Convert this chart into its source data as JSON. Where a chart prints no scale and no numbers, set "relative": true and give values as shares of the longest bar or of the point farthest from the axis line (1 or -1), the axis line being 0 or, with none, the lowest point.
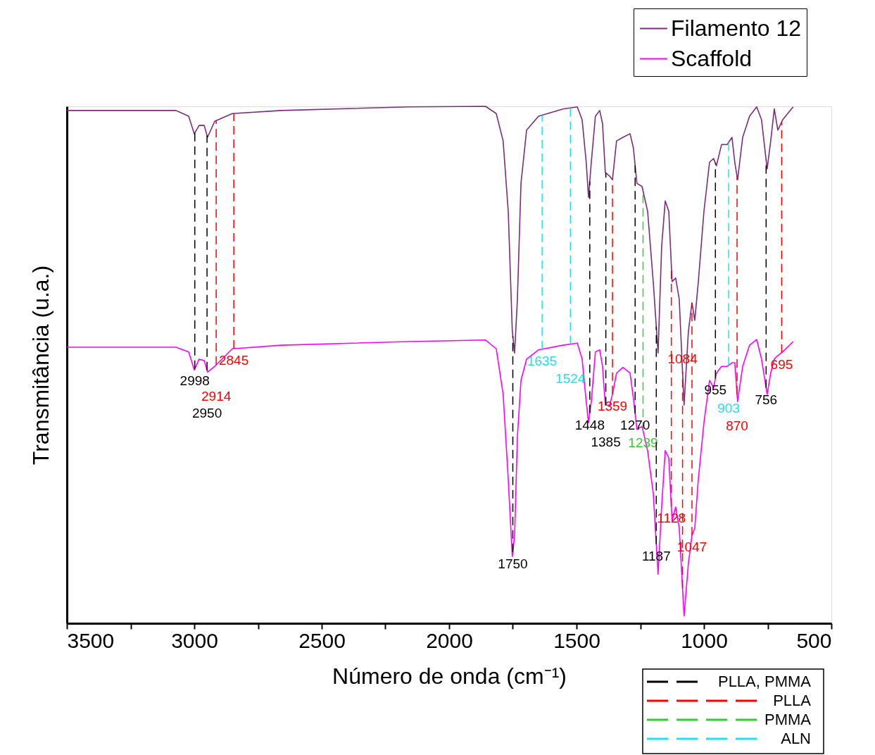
{
  "chart_data": {
    "type": "line",
    "relative": true,
    "xlabel": "Número de onda (cm⁻¹)",
    "ylabel": "Transmitância (u.a.)",
    "xlim": [
      3500,
      500
    ],
    "xticks": [
      3500,
      {
        "value": 3250,
        "label": null
      },
      3000,
      {
        "value": 2750,
        "label": null
      },
      2500,
      {
        "value": 2250,
        "label": null
      },
      2000,
      {
        "value": 1750,
        "label": null
      },
      1500,
      {
        "value": 1250,
        "label": null
      },
      1000,
      {
        "value": 750,
        "label": null
      },
      500
    ],
    "x": [
      3500,
      3072,
      3022,
      3000,
      2981,
      2961,
      2948,
      2920,
      2851,
      2658,
      2160,
      1857,
      1815,
      1788,
      1768,
      1752,
      1743,
      1732,
      1718,
      1696,
      1649,
      1553,
      1497,
      1478,
      1462,
      1453,
      1442,
      1426,
      1409,
      1398,
      1387,
      1370,
      1359,
      1343,
      1318,
      1290,
      1277,
      1263,
      1243,
      1221,
      1199,
      1180,
      1166,
      1152,
      1138,
      1125,
      1111,
      1097,
      1078,
      1061,
      1047,
      1036,
      1022,
      1000,
      978,
      962,
      951,
      931,
      909,
      890,
      879,
      868,
      848,
      821,
      793,
      774,
      752,
      738,
      724,
      710,
      691,
      650
    ],
    "series": [
      {
        "name": "Filamento 12",
        "color": "#7b2d7b",
        "values": [
          0.992,
          0.992,
          0.981,
          0.947,
          0.963,
          0.963,
          0.94,
          0.971,
          0.986,
          0.992,
          0.999,
          1,
          0.986,
          0.933,
          0.797,
          0.565,
          0.523,
          0.627,
          0.851,
          0.954,
          0.981,
          0.995,
          0.999,
          0.974,
          0.892,
          0.824,
          0.892,
          0.981,
          0.992,
          0.967,
          0.872,
          0.865,
          0.858,
          0.933,
          0.94,
          0.947,
          0.92,
          0.851,
          0.845,
          0.797,
          0.661,
          0.523,
          0.729,
          0.817,
          0.797,
          0.661,
          0.668,
          0.627,
          0.422,
          0.565,
          0.62,
          0.586,
          0.661,
          0.797,
          0.892,
          0.899,
          0.885,
          0.926,
          0.926,
          0.94,
          0.892,
          0.858,
          0.94,
          0.981,
          0.999,
          0.974,
          0.879,
          0.933,
          0.995,
          0.954,
          0.974,
          0.999
        ]
      },
      {
        "name": "Scaffold",
        "color": "#ff00ff",
        "values": [
          0.534,
          0.534,
          0.525,
          0.49,
          0.511,
          0.508,
          0.486,
          0.497,
          0.531,
          0.538,
          0.545,
          0.548,
          0.531,
          0.443,
          0.279,
          0.129,
          0.17,
          0.361,
          0.47,
          0.511,
          0.529,
          0.538,
          0.542,
          0.511,
          0.429,
          0.388,
          0.429,
          0.525,
          0.529,
          0.497,
          0.422,
          0.422,
          0.443,
          0.484,
          0.495,
          0.484,
          0.436,
          0.375,
          0.381,
          0.334,
          0.252,
          0.095,
          0.225,
          0.334,
          0.32,
          0.198,
          0.225,
          0.184,
          0.014,
          0.116,
          0.17,
          0.184,
          0.279,
          0.388,
          0.47,
          0.456,
          0.484,
          0.497,
          0.497,
          0.504,
          0.504,
          0.429,
          0.497,
          0.538,
          0.549,
          0.511,
          0.443,
          0.484,
          0.511,
          0.518,
          0.525,
          0.545
        ]
      }
    ],
    "legend": "top right",
    "grid": false,
    "marker": "none",
    "line_style": "solid",
    "ref_lines": [
      {
        "axis": "x",
        "value": 2998,
        "label": "2998",
        "color": "#000000",
        "line_style": "dashed"
      },
      {
        "axis": "x",
        "value": 2914,
        "label": "2914",
        "color": "#ff0000",
        "line_style": "dashed"
      },
      {
        "axis": "x",
        "value": 1239,
        "label": "1239",
        "color": "#33cc33",
        "line_style": "dashed"
      },
      {
        "axis": "x",
        "value": 1635,
        "label": "1635",
        "color": "#22e0f0",
        "line_style": "dashed"
      },
      {
        "axis": "x",
        "value": 2950,
        "label": "2950",
        "color": "#000000",
        "line_style": "dashed"
      },
      {
        "axis": "x",
        "value": 2845,
        "label": "2845",
        "color": "#ff0000",
        "line_style": "dashed"
      },
      {
        "axis": "x",
        "value": 1524,
        "label": "1524",
        "color": "#22e0f0",
        "line_style": "dashed"
      },
      {
        "axis": "x",
        "value": 1750,
        "label": "1750",
        "color": "#000000",
        "line_style": "dashed"
      },
      {
        "axis": "x",
        "value": 1448,
        "label": "1448",
        "color": "#000000",
        "line_style": "dashed"
      },
      {
        "axis": "x",
        "value": 1385,
        "label": "1385",
        "color": "#000000",
        "line_style": "dashed"
      },
      {
        "axis": "x",
        "value": 1359,
        "label": "1359",
        "color": "#ff0000",
        "line_style": "dashed"
      },
      {
        "axis": "x",
        "value": 1270,
        "label": "1270",
        "color": "#000000",
        "line_style": "dashed"
      },
      {
        "axis": "x",
        "value": 1187,
        "label": "1187",
        "color": "#000000",
        "line_style": "dashed"
      },
      {
        "axis": "x",
        "value": 1128,
        "label": "1128",
        "color": "#ff0000",
        "line_style": "dashed"
      },
      {
        "axis": "x",
        "value": 1084,
        "label": "1084",
        "color": "#ff0000",
        "line_style": "dashed"
      },
      {
        "axis": "x",
        "value": 1047,
        "label": "1047",
        "color": "#ff0000",
        "line_style": "dashed"
      },
      {
        "axis": "x",
        "value": 955,
        "label": "955",
        "color": "#000000",
        "line_style": "dashed"
      },
      {
        "axis": "x",
        "value": 903,
        "label": "903",
        "color": "#22e0f0",
        "line_style": "dashed"
      },
      {
        "axis": "x",
        "value": 870,
        "label": "870",
        "color": "#ff0000",
        "line_style": "dashed"
      },
      {
        "axis": "x",
        "value": 756,
        "label": "756",
        "color": "#000000",
        "line_style": "dashed"
      },
      {
        "axis": "x",
        "value": 695,
        "label": "695",
        "color": "#ff0000",
        "line_style": "dashed"
      }
    ],
    "annotations": [
      "PLLA, PMMA",
      "PLLA",
      "PMMA",
      "ALN"
    ]
  }
}
